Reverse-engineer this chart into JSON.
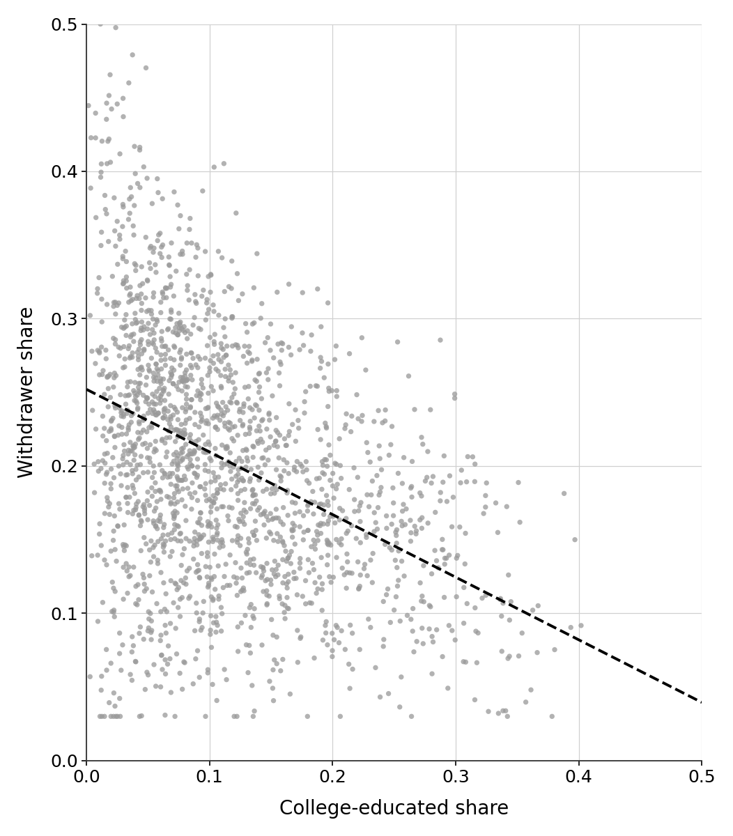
{
  "xlabel": "College-educated share",
  "ylabel": "Withdrawer share",
  "xlim": [
    0.0,
    0.5
  ],
  "ylim": [
    0.0,
    0.5
  ],
  "xticks": [
    0.0,
    0.1,
    0.2,
    0.3,
    0.4,
    0.5
  ],
  "yticks": [
    0.0,
    0.1,
    0.2,
    0.3,
    0.4,
    0.5
  ],
  "dot_color": "#999999",
  "dot_size": 28,
  "dot_alpha": 0.75,
  "line_color": "black",
  "line_style": "--",
  "line_width": 2.8,
  "line_intercept": 0.252,
  "line_slope": -0.425,
  "background_color": "#ffffff",
  "grid_color": "#d0d0d0",
  "xlabel_fontsize": 20,
  "ylabel_fontsize": 20,
  "tick_fontsize": 18,
  "seed": 42,
  "n_points": 2000
}
